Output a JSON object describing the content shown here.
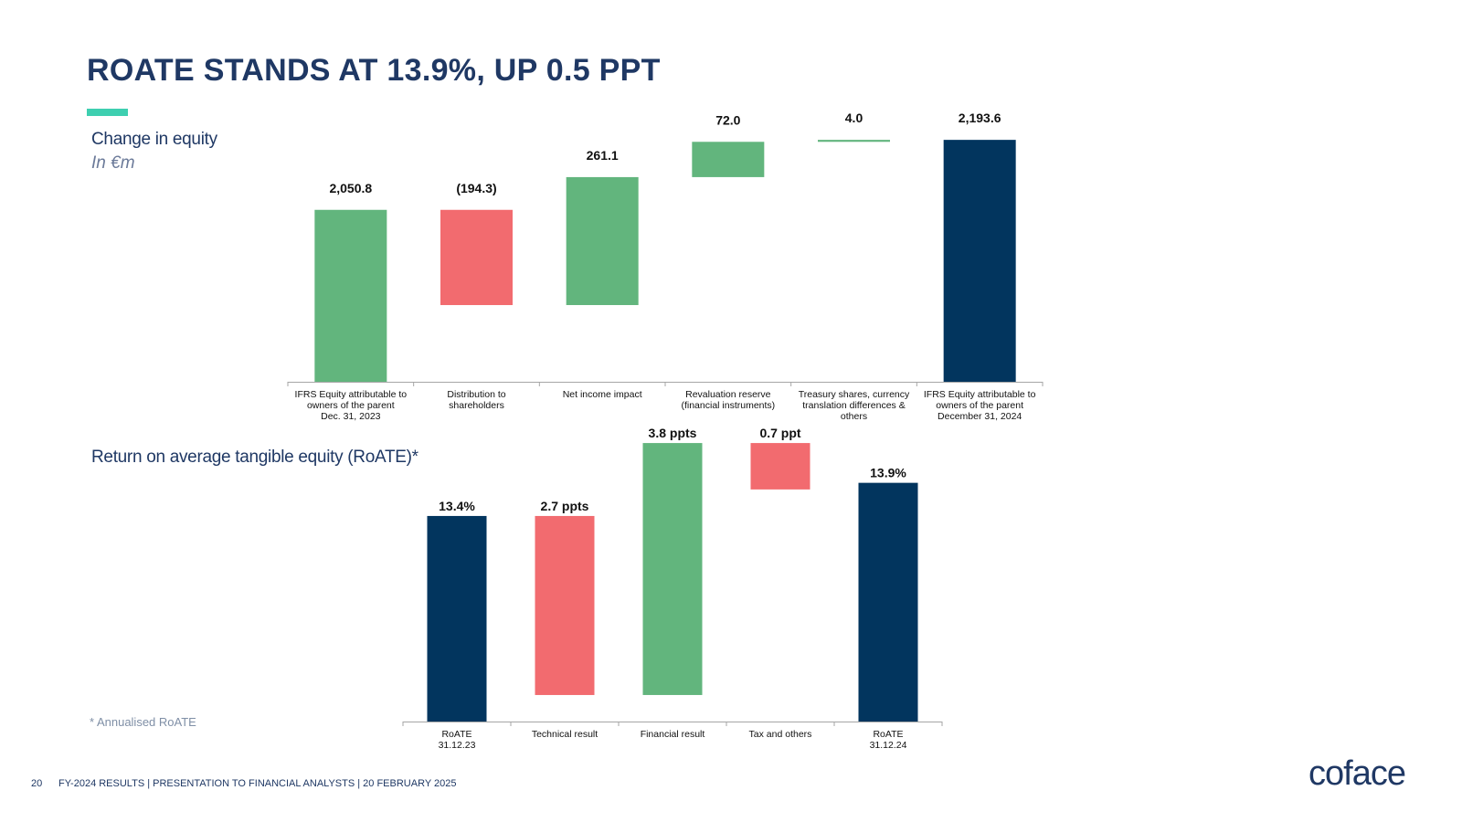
{
  "header": {
    "title": "ROATE STANDS AT 13.9%, UP 0.5 PPT"
  },
  "section1": {
    "title": "Change in equity",
    "subtitle": "In €m"
  },
  "section2": {
    "title": "Return on average tangible equity (RoATE)*"
  },
  "footnote": "* Annualised RoATE",
  "footer": {
    "page": "20",
    "text": "FY-2024 RESULTS  |  PRESENTATION TO FINANCIAL ANALYSTS  |  20 FEBRUARY 2025"
  },
  "logo": "coface",
  "colors": {
    "total": "#02355e",
    "increase": "#62b57d",
    "decrease": "#f26b6f",
    "title": "#1f3864",
    "accent": "#3ecfb0"
  },
  "chart_data": [
    {
      "type": "bar",
      "variant": "waterfall",
      "categories": [
        [
          "IFRS Equity attributable to",
          "owners of the parent",
          "Dec. 31, 2023"
        ],
        [
          "Distribution to",
          "shareholders"
        ],
        [
          "Net income impact"
        ],
        [
          "Revaluation reserve",
          "(financial instruments)"
        ],
        [
          "Treasury shares, currency",
          "translation differences &",
          "others"
        ],
        [
          "IFRS Equity attributable to",
          "owners of the parent",
          "December 31, 2024"
        ]
      ],
      "values": [
        2050.8,
        -194.3,
        261.1,
        72.0,
        4.0,
        2193.6
      ],
      "kinds": [
        "start",
        "decrease",
        "increase",
        "increase",
        "increase",
        "total"
      ],
      "labels": [
        "2,050.8",
        "(194.3)",
        "261.1",
        "72.0",
        "4.0",
        "2,193.6"
      ]
    },
    {
      "type": "bar",
      "variant": "waterfall",
      "categories": [
        [
          "RoATE",
          "31.12.23"
        ],
        [
          "Technical result"
        ],
        [
          "Financial result"
        ],
        [
          "Tax and others"
        ],
        [
          "RoATE",
          "31.12.24"
        ]
      ],
      "values": [
        13.4,
        -2.7,
        3.8,
        -0.7,
        13.9
      ],
      "kinds": [
        "total",
        "decrease",
        "increase",
        "decrease",
        "total"
      ],
      "labels": [
        "13.4%",
        "2.7 ppts",
        "3.8 ppts",
        "0.7 ppt",
        "13.9%"
      ]
    }
  ]
}
